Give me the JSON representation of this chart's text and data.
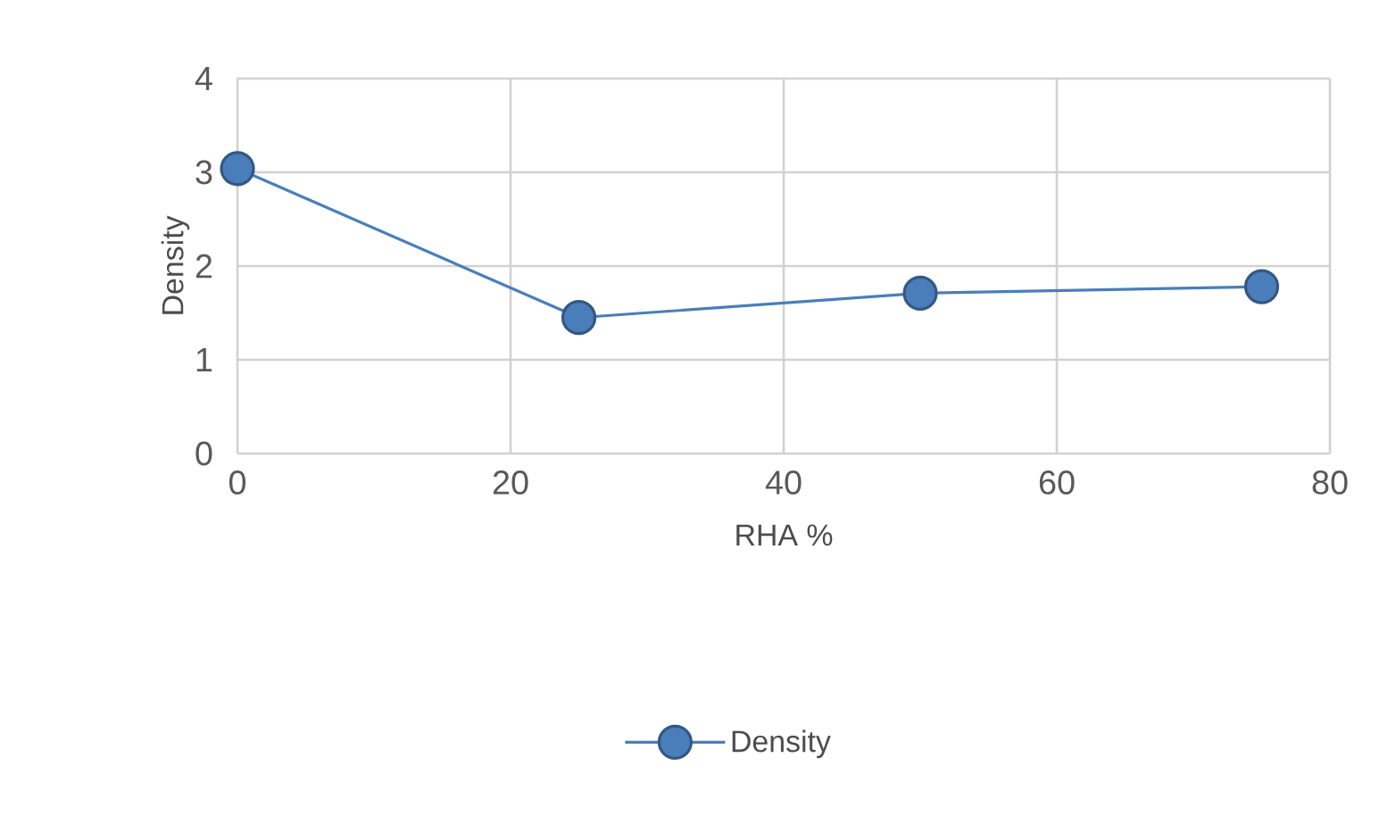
{
  "chart_data": {
    "type": "line",
    "xlabel": "RHA %",
    "ylabel": "Density",
    "x": [
      0,
      25,
      50,
      75
    ],
    "series": [
      {
        "name": "Density",
        "color": "#4a7ebb",
        "values": [
          3.04,
          1.45,
          1.71,
          1.78
        ]
      }
    ],
    "xlim": [
      0,
      80
    ],
    "xticks": [
      0,
      20,
      40,
      60,
      80
    ],
    "ylim": [
      0,
      4
    ],
    "yticks": [
      0,
      1,
      2,
      3,
      4
    ],
    "grid": true,
    "legend": "bottom",
    "marker": "circle",
    "line_style": "solid"
  }
}
